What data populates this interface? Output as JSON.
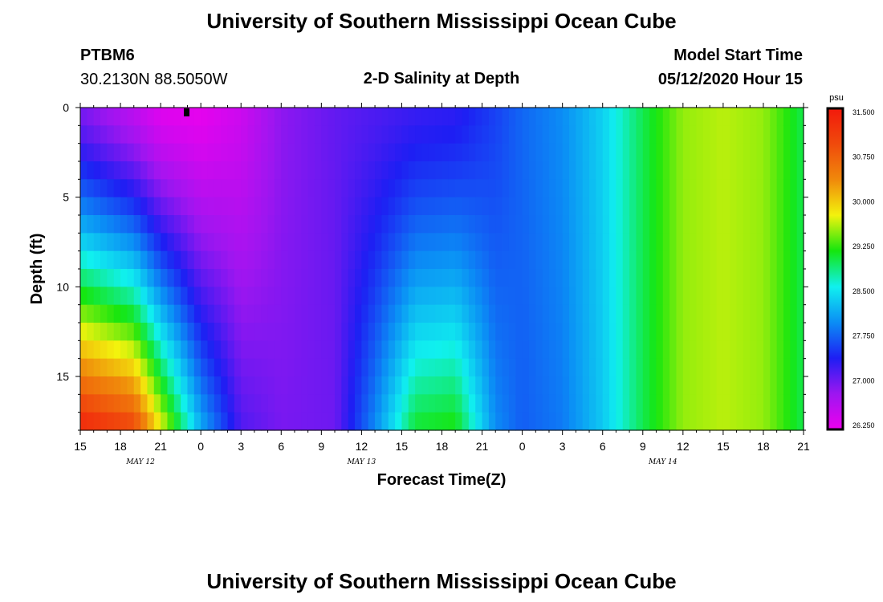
{
  "header": {
    "title_top": "University of Southern Mississippi Ocean Cube",
    "station_id": "PTBM6",
    "coordinates": "30.2130N 88.5050W",
    "plot_title": "2-D Salinity at Depth",
    "model_label": "Model Start Time",
    "model_time": "05/12/2020 Hour 15",
    "title_bottom": "University of Southern Mississippi Ocean Cube"
  },
  "chart_data": {
    "type": "heatmap",
    "title": "2-D Salinity at Depth",
    "xlabel": "Forecast Time(Z)",
    "ylabel": "Depth (ft)",
    "x_start_hour": 15,
    "x_hours_total": 54,
    "x_ticks": [
      "15",
      "18",
      "21",
      "0",
      "3",
      "6",
      "9",
      "12",
      "15",
      "18",
      "21",
      "0",
      "3",
      "6",
      "9",
      "12",
      "15",
      "18",
      "21"
    ],
    "x_date_labels": [
      {
        "label": "MAY 12",
        "hour_index": 4.5
      },
      {
        "label": "MAY 13",
        "hour_index": 21
      },
      {
        "label": "MAY 14",
        "hour_index": 43.5
      }
    ],
    "ylim": [
      0,
      18
    ],
    "y_ticks": [
      0,
      5,
      10,
      15
    ],
    "depth_levels": 18,
    "colorbar": {
      "unit": "psu",
      "min": 26.25,
      "max": 31.5,
      "ticks": [
        "31.500",
        "30.750",
        "30.000",
        "29.250",
        "28.500",
        "27.750",
        "27.000",
        "26.250"
      ],
      "colors": [
        "#ee00ee",
        "#9d16f0",
        "#1e1ef3",
        "#0b8df5",
        "#10f0ef",
        "#15e60e",
        "#f3f30d",
        "#f0890b",
        "#f04a0c",
        "#f2190c"
      ]
    },
    "salinity_profile": {
      "description": "time (hour index from start) vs salinity at surface (depth 0) and bottom (depth 18)",
      "keyframes": [
        {
          "hour": 0,
          "surface": 27.0,
          "bottom": 31.4
        },
        {
          "hour": 4,
          "surface": 26.6,
          "bottom": 31.0
        },
        {
          "hour": 6,
          "surface": 26.35,
          "bottom": 29.8
        },
        {
          "hour": 9,
          "surface": 26.3,
          "bottom": 28.2
        },
        {
          "hour": 12,
          "surface": 26.5,
          "bottom": 27.2
        },
        {
          "hour": 15,
          "surface": 26.9,
          "bottom": 27.0
        },
        {
          "hour": 19,
          "surface": 27.1,
          "bottom": 27.05
        },
        {
          "hour": 22,
          "surface": 27.2,
          "bottom": 28.0
        },
        {
          "hour": 25,
          "surface": 27.3,
          "bottom": 29.1
        },
        {
          "hour": 28,
          "surface": 27.35,
          "bottom": 29.2
        },
        {
          "hour": 31,
          "surface": 27.6,
          "bottom": 28.0
        },
        {
          "hour": 33,
          "surface": 27.8,
          "bottom": 27.75
        },
        {
          "hour": 36,
          "surface": 28.0,
          "bottom": 27.9
        },
        {
          "hour": 39,
          "surface": 28.4,
          "bottom": 28.35
        },
        {
          "hour": 42,
          "surface": 29.0,
          "bottom": 29.0
        },
        {
          "hour": 45,
          "surface": 29.5,
          "bottom": 29.5
        },
        {
          "hour": 48,
          "surface": 29.6,
          "bottom": 29.6
        },
        {
          "hour": 51,
          "surface": 29.5,
          "bottom": 29.5
        },
        {
          "hour": 54,
          "surface": 29.0,
          "bottom": 29.0
        }
      ]
    }
  }
}
